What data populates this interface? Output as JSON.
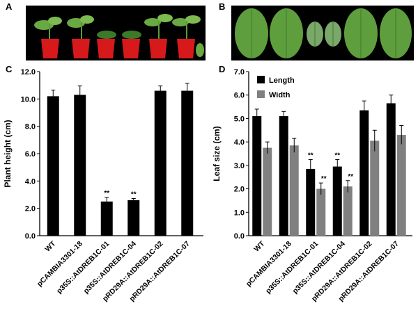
{
  "panels": {
    "a": {
      "letter": "A"
    },
    "b": {
      "letter": "B"
    },
    "c": {
      "letter": "C"
    },
    "d": {
      "letter": "D"
    }
  },
  "colors": {
    "bar_black": "#000000",
    "bar_gray": "#808080",
    "photo_background": "#000000",
    "pot_red": "#d8191c",
    "leaf_green": "#6aa843",
    "leaf_dark_green": "#3c7a2a"
  },
  "chart_data": [
    {
      "panel": "C",
      "type": "bar",
      "ylabel": "Plant height (cm)",
      "ylim": [
        0,
        12
      ],
      "yticks": [
        "0.0",
        "2.0",
        "4.0",
        "6.0",
        "8.0",
        "10.0",
        "12.0"
      ],
      "categories": [
        "WT",
        "pCAMBIA3301-18",
        "p35S::AtDREB1C-01",
        "p35S::AtDREB1C-04",
        "pRD29A::AtDREB1C-02",
        "pRD29A::AtDREB1C-07"
      ],
      "series": [
        {
          "values": [
            10.2,
            10.3,
            2.5,
            2.6,
            10.6,
            10.6
          ],
          "errors": [
            0.45,
            0.65,
            0.3,
            0.12,
            0.35,
            0.55
          ],
          "significance": [
            "",
            "",
            "**",
            "**",
            "",
            ""
          ]
        }
      ]
    },
    {
      "panel": "D",
      "type": "bar",
      "ylabel": "Leaf size (cm)",
      "ylim": [
        0,
        7
      ],
      "yticks": [
        "0.0",
        "1.0",
        "2.0",
        "3.0",
        "4.0",
        "5.0",
        "6.0",
        "7.0"
      ],
      "legend_position": "top-left",
      "categories": [
        "WT",
        "pCAMBIA3301-18",
        "p35S::AtDREB1C-01",
        "p35S::AtDREB1C-04",
        "pRD29A::AtDREB1C-02",
        "pRD29A::AtDREB1C-07"
      ],
      "series": [
        {
          "name": "Length",
          "values": [
            5.1,
            5.1,
            2.85,
            2.95,
            5.35,
            5.65
          ],
          "errors": [
            0.3,
            0.2,
            0.4,
            0.3,
            0.4,
            0.35
          ],
          "significance": [
            "",
            "",
            "**",
            "**",
            "",
            ""
          ]
        },
        {
          "name": "Width",
          "values": [
            3.75,
            3.85,
            2.0,
            2.1,
            4.05,
            4.3
          ],
          "errors": [
            0.25,
            0.3,
            0.25,
            0.25,
            0.45,
            0.4
          ],
          "significance": [
            "",
            "",
            "**",
            "**",
            "",
            ""
          ]
        }
      ]
    }
  ]
}
